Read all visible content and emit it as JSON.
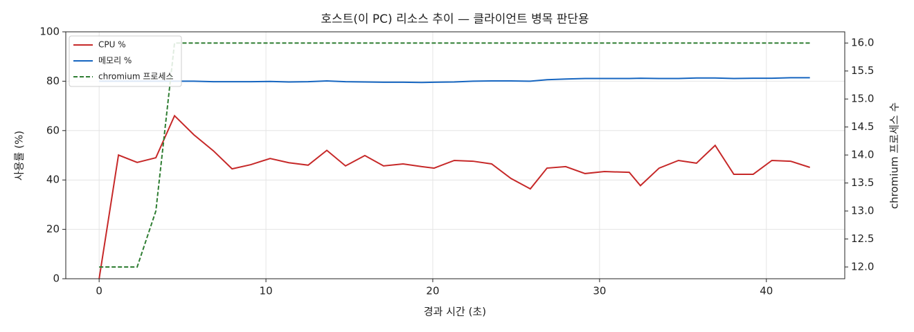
{
  "chart_data": {
    "type": "line",
    "title": "호스트(이 PC) 리소스 추이 — 클라이언트 병목 판단용",
    "xlabel": "경과 시간 (초)",
    "ylabel": "사용률 (%)",
    "y2label": "chromium 프로세스 수",
    "x": [
      0,
      1.16,
      2.28,
      3.4,
      4.52,
      5.68,
      6.85,
      7.97,
      9.09,
      10.25,
      11.37,
      12.53,
      13.65,
      14.77,
      15.93,
      17.05,
      18.22,
      19.34,
      20.08,
      21.29,
      22.41,
      23.53,
      24.69,
      25.85,
      26.85,
      27.97,
      29.13,
      30.29,
      31.78,
      32.45,
      33.57,
      34.73,
      35.81,
      36.93,
      38.05,
      39.21,
      40.33,
      41.45,
      42.61
    ],
    "series": [
      {
        "name": "CPU %",
        "color": "#c62828",
        "dash": false,
        "values": [
          0,
          50.1,
          47.1,
          49,
          66,
          58.3,
          51.8,
          44.5,
          46.2,
          48.7,
          47,
          46,
          52,
          45.7,
          49.9,
          45.7,
          46.5,
          45.4,
          44.8,
          47.9,
          47.6,
          46.5,
          40.6,
          36.4,
          44.8,
          45.4,
          42.6,
          43.4,
          43.1,
          37.7,
          44.8,
          47.9,
          46.8,
          54,
          42.3,
          42.3,
          47.9,
          47.6,
          45.1
        ]
      },
      {
        "name": "메모리 %",
        "color": "#1565c0",
        "dash": false,
        "values": [
          80.0,
          80.0,
          80.0,
          80.0,
          80.0,
          80.0,
          79.8,
          79.8,
          79.8,
          79.9,
          79.7,
          79.8,
          80.1,
          79.8,
          79.7,
          79.6,
          79.6,
          79.5,
          79.6,
          79.7,
          80.0,
          80.1,
          80.1,
          80.0,
          80.6,
          80.9,
          81.1,
          81.1,
          81.1,
          81.2,
          81.1,
          81.1,
          81.3,
          81.3,
          81.1,
          81.2,
          81.2,
          81.4,
          81.4
        ]
      },
      {
        "name": "chromium 프로세스",
        "color": "#2e7d32",
        "dash": true,
        "axis": "y2",
        "values": [
          12,
          12,
          12,
          13,
          16,
          16,
          16,
          16,
          16,
          16,
          16,
          16,
          16,
          16,
          16,
          16,
          16,
          16,
          16,
          16,
          16,
          16,
          16,
          16,
          16,
          16,
          16,
          16,
          16,
          16,
          16,
          16,
          16,
          16,
          16,
          16,
          16,
          16,
          16
        ]
      }
    ],
    "xlim": [
      -2.0,
      44.7
    ],
    "xticks": [
      0,
      10,
      20,
      30,
      40
    ],
    "ylim": [
      0,
      100
    ],
    "yticks": [
      0,
      20,
      40,
      60,
      80,
      100
    ],
    "y2lim": [
      11.79,
      16.2
    ],
    "y2ticks": [
      {
        "value": 12,
        "label": "12.0"
      },
      {
        "value": 12.5,
        "label": "12.5"
      },
      {
        "value": 13,
        "label": "13.0"
      },
      {
        "value": 13.5,
        "label": "13.5"
      },
      {
        "value": 14,
        "label": "14.0"
      },
      {
        "value": 14.5,
        "label": "14.5"
      },
      {
        "value": 15,
        "label": "15.0"
      },
      {
        "value": 15.5,
        "label": "15.5"
      },
      {
        "value": 16,
        "label": "16.0"
      }
    ],
    "grid": true,
    "legend": "upper-left"
  }
}
